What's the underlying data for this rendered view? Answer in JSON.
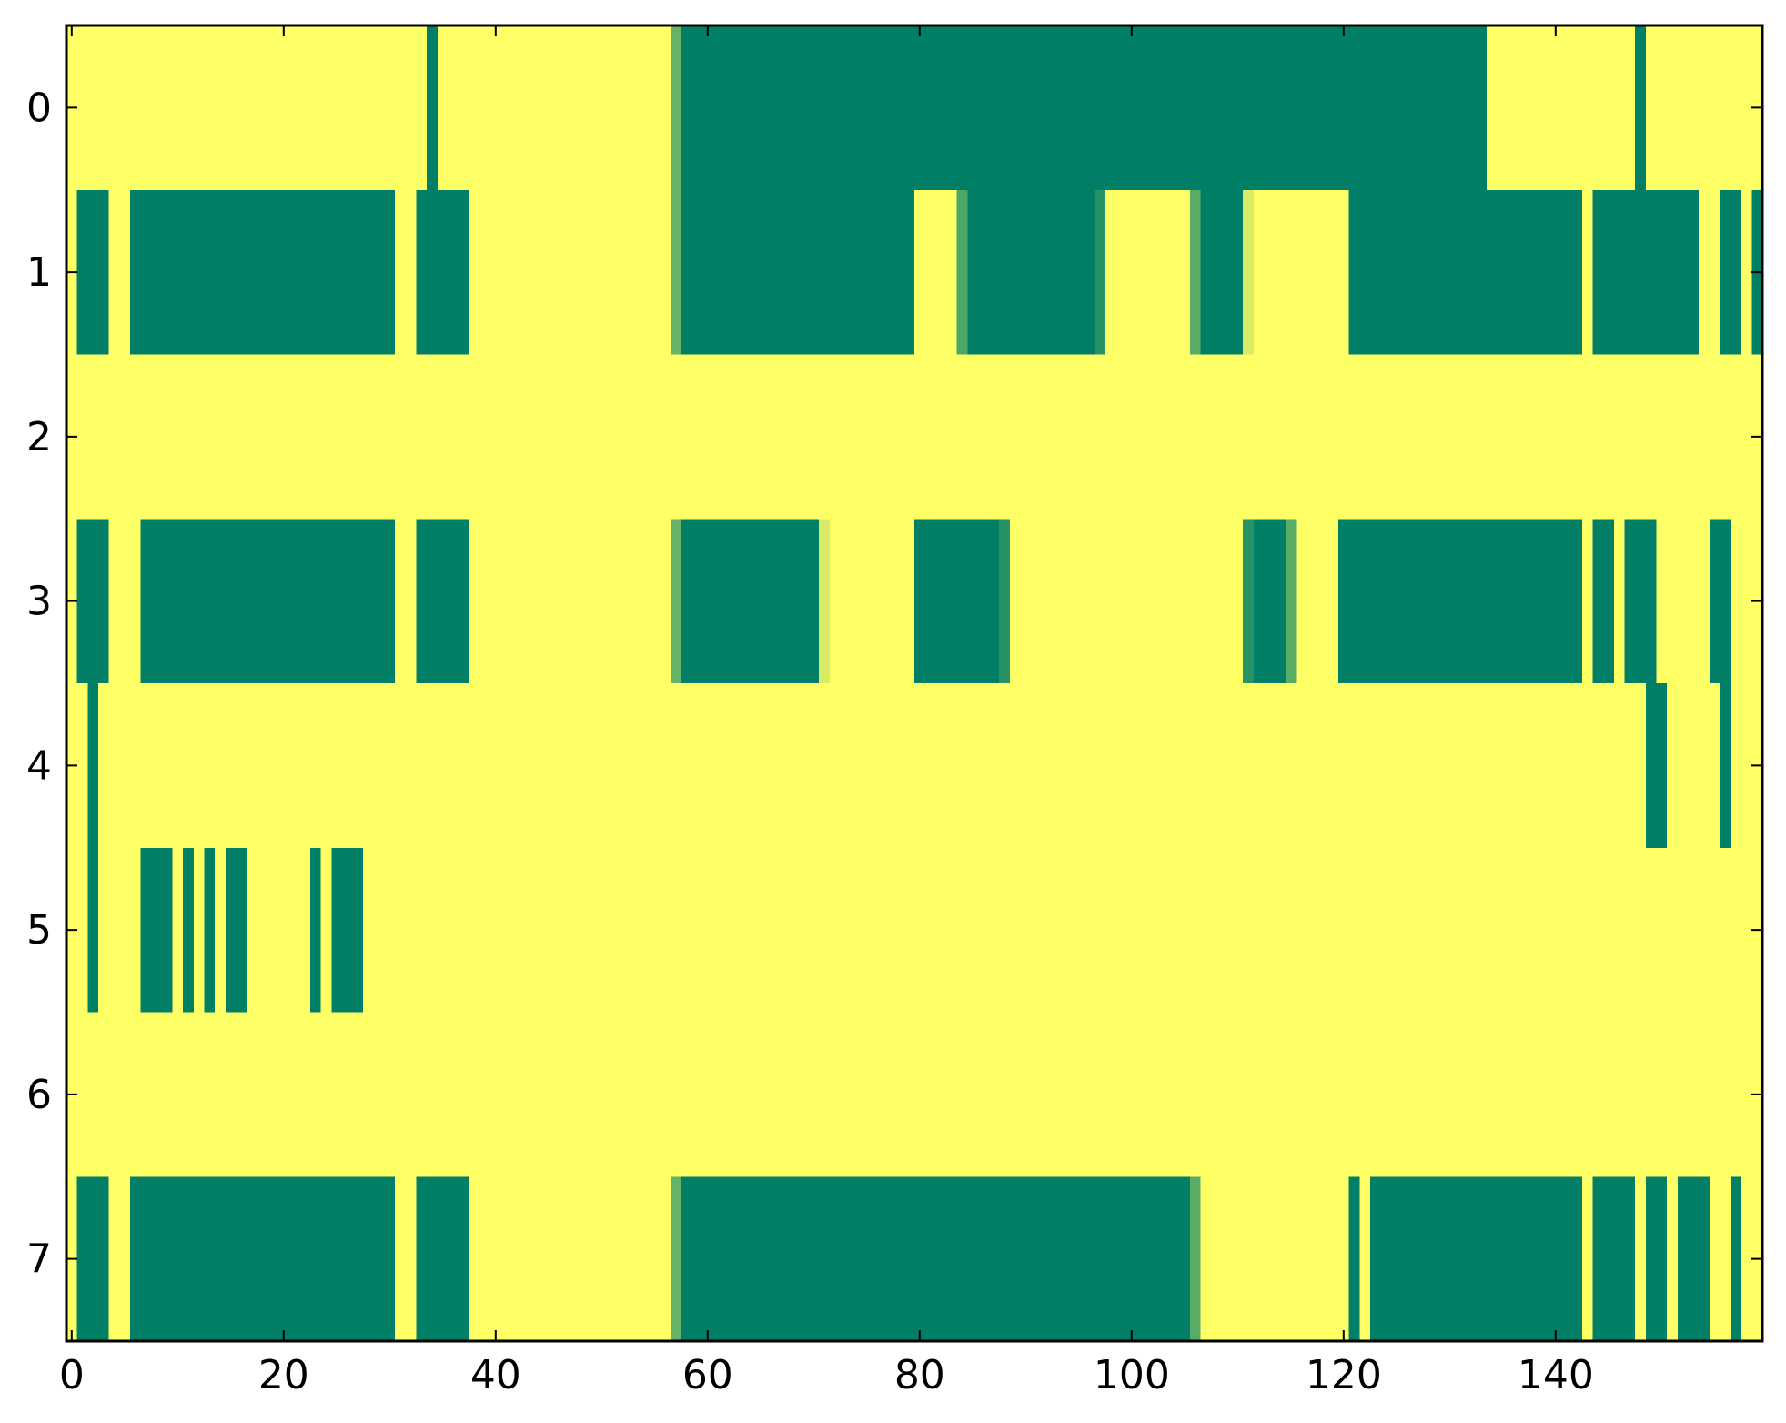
{
  "chart_data": {
    "type": "heatmap",
    "title": "",
    "xlabel": "",
    "ylabel": "",
    "xlim": [
      -0.5,
      159.5
    ],
    "ylim": [
      7.5,
      -0.5
    ],
    "x_ticks": [
      0,
      20,
      40,
      60,
      80,
      100,
      120,
      140
    ],
    "x_tick_labels": [
      "0",
      "20",
      "40",
      "60",
      "80",
      "100",
      "120",
      "140"
    ],
    "y_ticks": [
      0,
      1,
      2,
      3,
      4,
      5,
      6,
      7
    ],
    "y_tick_labels": [
      "0",
      "1",
      "2",
      "3",
      "4",
      "5",
      "6",
      "7"
    ],
    "grid": false,
    "colormap": {
      "low": "#007f66",
      "high": "#ffff66"
    },
    "background_value": 1,
    "note_rows": "Each row lists runs [start_column, end_column, value]; columns not covered have value 1 (yellow).",
    "rows": [
      {
        "row": 0,
        "runs": [
          [
            34,
            34,
            0
          ],
          [
            57,
            57,
            0.4
          ],
          [
            58,
            133,
            0
          ],
          [
            148,
            148,
            0
          ]
        ]
      },
      {
        "row": 1,
        "runs": [
          [
            1,
            3,
            0
          ],
          [
            6,
            30,
            0
          ],
          [
            33,
            37,
            0
          ],
          [
            57,
            57,
            0.4
          ],
          [
            58,
            79,
            0
          ],
          [
            84,
            84,
            0.3
          ],
          [
            85,
            96,
            0
          ],
          [
            97,
            97,
            0.15
          ],
          [
            106,
            106,
            0.35
          ],
          [
            107,
            110,
            0
          ],
          [
            111,
            111,
            0.85
          ],
          [
            121,
            142,
            0
          ],
          [
            144,
            153,
            0
          ],
          [
            156,
            157,
            0
          ],
          [
            159,
            159,
            0
          ]
        ]
      },
      {
        "row": 2,
        "runs": []
      },
      {
        "row": 3,
        "runs": [
          [
            1,
            3,
            0
          ],
          [
            7,
            30,
            0
          ],
          [
            33,
            37,
            0
          ],
          [
            57,
            57,
            0.4
          ],
          [
            58,
            70,
            0
          ],
          [
            71,
            71,
            0.85
          ],
          [
            80,
            87,
            0
          ],
          [
            88,
            88,
            0.15
          ],
          [
            111,
            111,
            0.15
          ],
          [
            112,
            114,
            0
          ],
          [
            115,
            115,
            0.35
          ],
          [
            120,
            142,
            0
          ],
          [
            144,
            145,
            0
          ],
          [
            147,
            149,
            0
          ],
          [
            155,
            156,
            0
          ]
        ]
      },
      {
        "row": 4,
        "runs": [
          [
            2,
            2,
            0
          ],
          [
            149,
            150,
            0
          ],
          [
            156,
            156,
            0
          ]
        ]
      },
      {
        "row": 5,
        "runs": [
          [
            2,
            2,
            0
          ],
          [
            7,
            9,
            0
          ],
          [
            11,
            11,
            0
          ],
          [
            13,
            13,
            0
          ],
          [
            15,
            16,
            0
          ],
          [
            23,
            23,
            0
          ],
          [
            25,
            27,
            0
          ]
        ]
      },
      {
        "row": 6,
        "runs": []
      },
      {
        "row": 7,
        "runs": [
          [
            1,
            3,
            0
          ],
          [
            6,
            30,
            0
          ],
          [
            33,
            37,
            0
          ],
          [
            57,
            57,
            0.4
          ],
          [
            58,
            105,
            0
          ],
          [
            106,
            106,
            0.35
          ],
          [
            121,
            121,
            0
          ],
          [
            123,
            142,
            0
          ],
          [
            144,
            147,
            0
          ],
          [
            149,
            150,
            0
          ],
          [
            152,
            154,
            0
          ],
          [
            157,
            157,
            0
          ]
        ]
      }
    ]
  }
}
